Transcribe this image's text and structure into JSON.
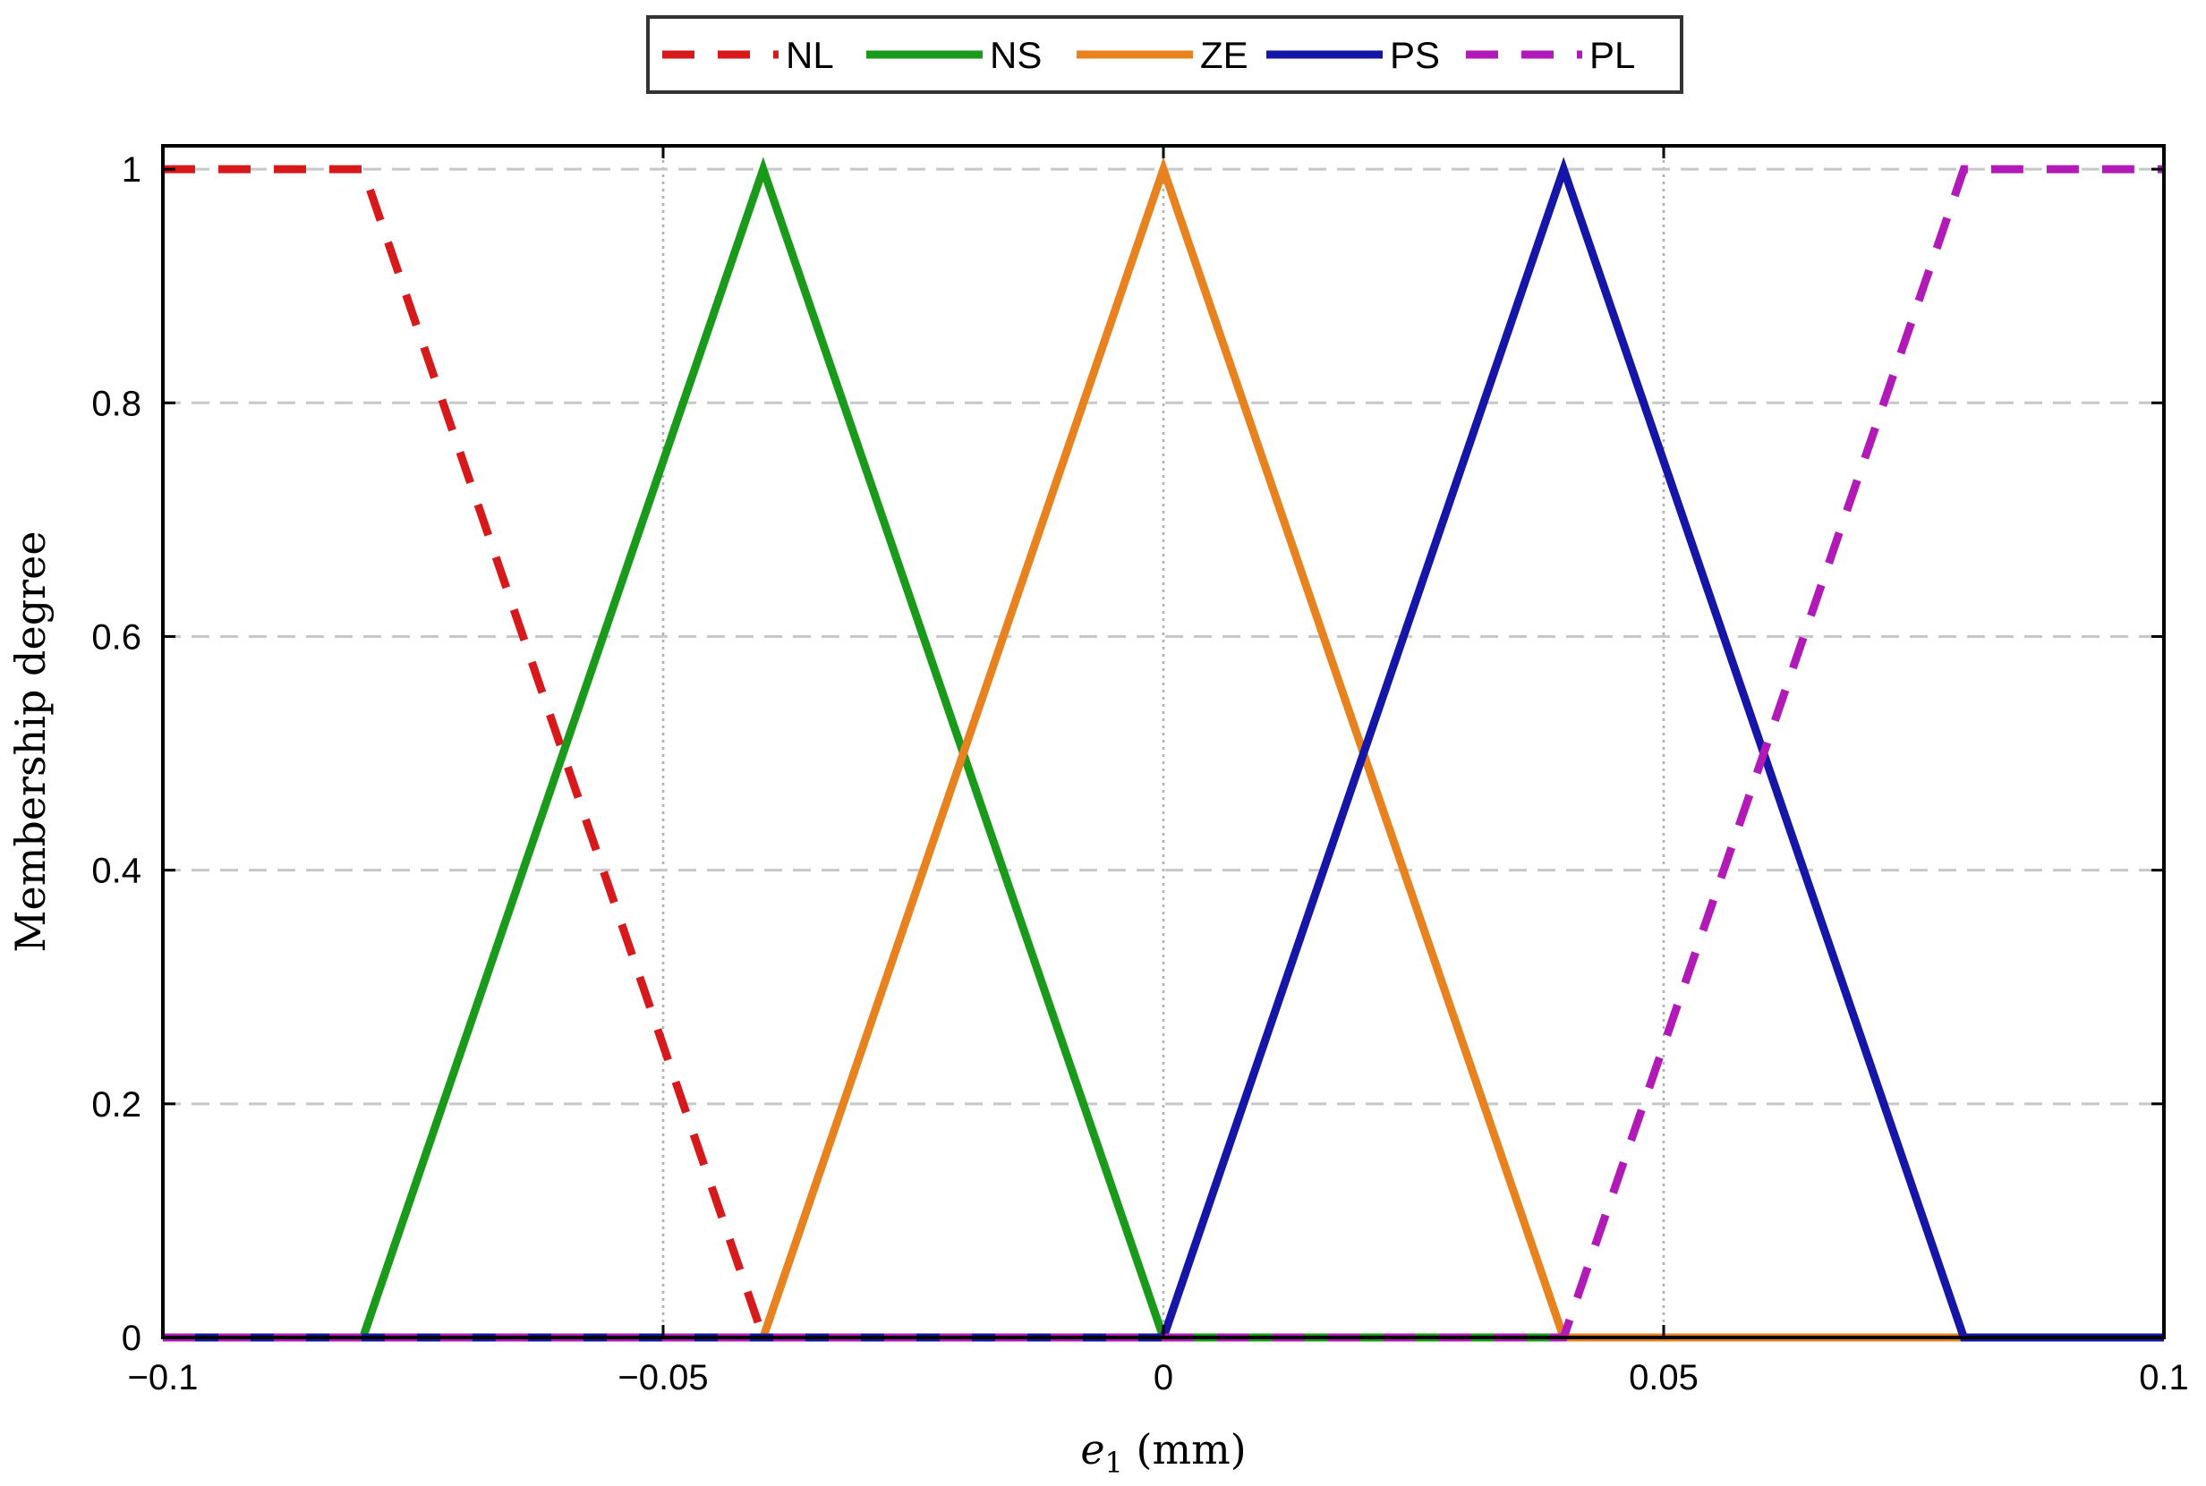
{
  "chart_data": {
    "type": "line",
    "title": "",
    "xlabel": "e",
    "xlabel_sub": "1",
    "xlabel_unit": " (mm)",
    "ylabel": "Membership degree",
    "xlim": [
      -0.1,
      0.1
    ],
    "ylim": [
      0,
      1.02
    ],
    "x_ticks": [
      -0.1,
      -0.05,
      0,
      0.05,
      0.1
    ],
    "x_tick_labels": [
      "−0.1",
      "−0.05",
      "0",
      "0.05",
      "0.1"
    ],
    "y_ticks": [
      0,
      0.2,
      0.4,
      0.6,
      0.8,
      1
    ],
    "y_tick_labels": [
      "0",
      "0.2",
      "0.4",
      "0.6",
      "0.8",
      "1"
    ],
    "grid": true,
    "legend_position": "top-center",
    "series": [
      {
        "name": "NL",
        "color": "#d7191c",
        "dashed": true,
        "x": [
          -0.1,
          -0.08,
          -0.04,
          0.1
        ],
        "y": [
          1,
          1,
          0,
          0
        ]
      },
      {
        "name": "NS",
        "color": "#1a9a1a",
        "dashed": false,
        "x": [
          -0.1,
          -0.08,
          -0.04,
          0,
          0.1
        ],
        "y": [
          0,
          0,
          1,
          0,
          0
        ]
      },
      {
        "name": "ZE",
        "color": "#e8821e",
        "dashed": false,
        "x": [
          -0.1,
          -0.04,
          0,
          0.04,
          0.1
        ],
        "y": [
          0,
          0,
          1,
          0,
          0
        ]
      },
      {
        "name": "PS",
        "color": "#1515a8",
        "dashed": false,
        "x": [
          -0.1,
          0,
          0.04,
          0.08,
          0.1
        ],
        "y": [
          0,
          0,
          1,
          0,
          0
        ]
      },
      {
        "name": "PL",
        "color": "#b21ab8",
        "dashed": true,
        "x": [
          -0.1,
          0.04,
          0.08,
          0.1
        ],
        "y": [
          0,
          0,
          1,
          1
        ]
      }
    ]
  }
}
